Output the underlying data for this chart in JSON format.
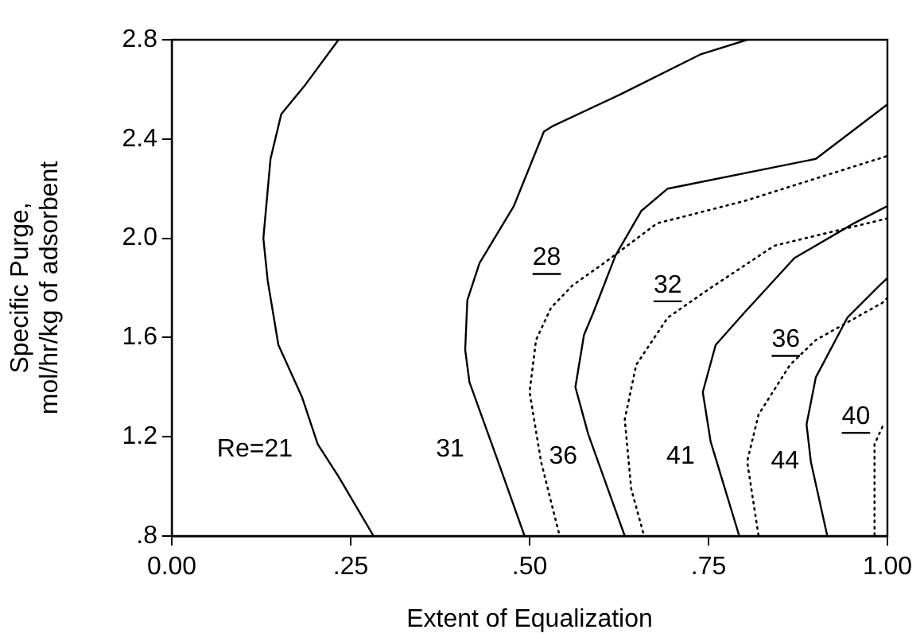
{
  "chart_data": {
    "type": "line",
    "xlabel": "Extent of Equalization",
    "ylabel": "Specific Purge,\nmol/hr/kg of adsorbent",
    "xlim": [
      0,
      1
    ],
    "ylim": [
      0.8,
      2.8
    ],
    "xticks": [
      {
        "value": 0,
        "label": "0.00"
      },
      {
        "value": 0.25,
        "label": ".25"
      },
      {
        "value": 0.5,
        "label": ".50"
      },
      {
        "value": 0.75,
        "label": ".75"
      },
      {
        "value": 1,
        "label": "1.00"
      }
    ],
    "yticks": [
      {
        "value": 0.8,
        "label": ".8"
      },
      {
        "value": 1.2,
        "label": "1.2"
      },
      {
        "value": 1.6,
        "label": "1.6"
      },
      {
        "value": 2.0,
        "label": "2.0"
      },
      {
        "value": 2.4,
        "label": "2.4"
      },
      {
        "value": 2.8,
        "label": "2.8"
      }
    ],
    "grid": false,
    "legend": false,
    "marker": "none",
    "series": [
      {
        "name": "Re=21",
        "color": "#000000",
        "line_style": "solid",
        "x": [
          0.233,
          0.187,
          0.153,
          0.138,
          0.128,
          0.134,
          0.149,
          0.182,
          0.204,
          0.233,
          0.282
        ],
        "values": [
          2.8,
          2.62,
          2.5,
          2.32,
          2.0,
          1.83,
          1.57,
          1.36,
          1.17,
          1.04,
          0.8
        ]
      },
      {
        "name": "31",
        "color": "#000000",
        "line_style": "solid",
        "x": [
          0.804,
          0.738,
          0.627,
          0.531,
          0.52,
          0.478,
          0.43,
          0.413,
          0.41,
          0.416,
          0.456,
          0.493
        ],
        "values": [
          2.8,
          2.74,
          2.58,
          2.45,
          2.43,
          2.13,
          1.9,
          1.75,
          1.55,
          1.42,
          1.1,
          0.8
        ]
      },
      {
        "name": "36",
        "color": "#000000",
        "line_style": "solid",
        "x": [
          1.0,
          0.9,
          0.693,
          0.656,
          0.62,
          0.589,
          0.576,
          0.564,
          0.582,
          0.633
        ],
        "values": [
          2.54,
          2.32,
          2.2,
          2.11,
          1.93,
          1.7,
          1.61,
          1.4,
          1.21,
          0.8
        ]
      },
      {
        "name": "41",
        "color": "#000000",
        "line_style": "solid",
        "x": [
          1.0,
          0.953,
          0.87,
          0.8,
          0.76,
          0.742,
          0.753,
          0.793
        ],
        "values": [
          2.13,
          2.06,
          1.92,
          1.7,
          1.57,
          1.38,
          1.18,
          0.8
        ]
      },
      {
        "name": "44",
        "color": "#000000",
        "line_style": "solid",
        "x": [
          1.0,
          0.989,
          0.944,
          0.9,
          0.887,
          0.893,
          0.916
        ],
        "values": [
          1.84,
          1.81,
          1.68,
          1.44,
          1.25,
          1.1,
          0.8
        ]
      },
      {
        "name": "28",
        "color": "#000000",
        "line_style": "dotted",
        "x": [
          0.998,
          0.8,
          0.678,
          0.604,
          0.56,
          0.53,
          0.509,
          0.5,
          0.516,
          0.542
        ],
        "values": [
          2.33,
          2.15,
          2.06,
          1.9,
          1.81,
          1.72,
          1.59,
          1.38,
          1.1,
          0.8
        ]
      },
      {
        "name": "32",
        "color": "#000000",
        "line_style": "dotted",
        "x": [
          1.0,
          0.842,
          0.753,
          0.693,
          0.649,
          0.633,
          0.642,
          0.66
        ],
        "values": [
          2.08,
          1.97,
          1.8,
          1.68,
          1.49,
          1.27,
          0.99,
          0.8
        ]
      },
      {
        "name": "36",
        "color": "#000000",
        "line_style": "dotted",
        "x": [
          1.0,
          0.993,
          0.9,
          0.864,
          0.82,
          0.804,
          0.82
        ],
        "values": [
          1.76,
          1.74,
          1.59,
          1.49,
          1.29,
          1.1,
          0.8
        ]
      },
      {
        "name": "40",
        "color": "#000000",
        "line_style": "dotted",
        "x": [
          0.993,
          0.982,
          0.982
        ],
        "values": [
          1.24,
          1.17,
          0.8
        ]
      }
    ]
  }
}
